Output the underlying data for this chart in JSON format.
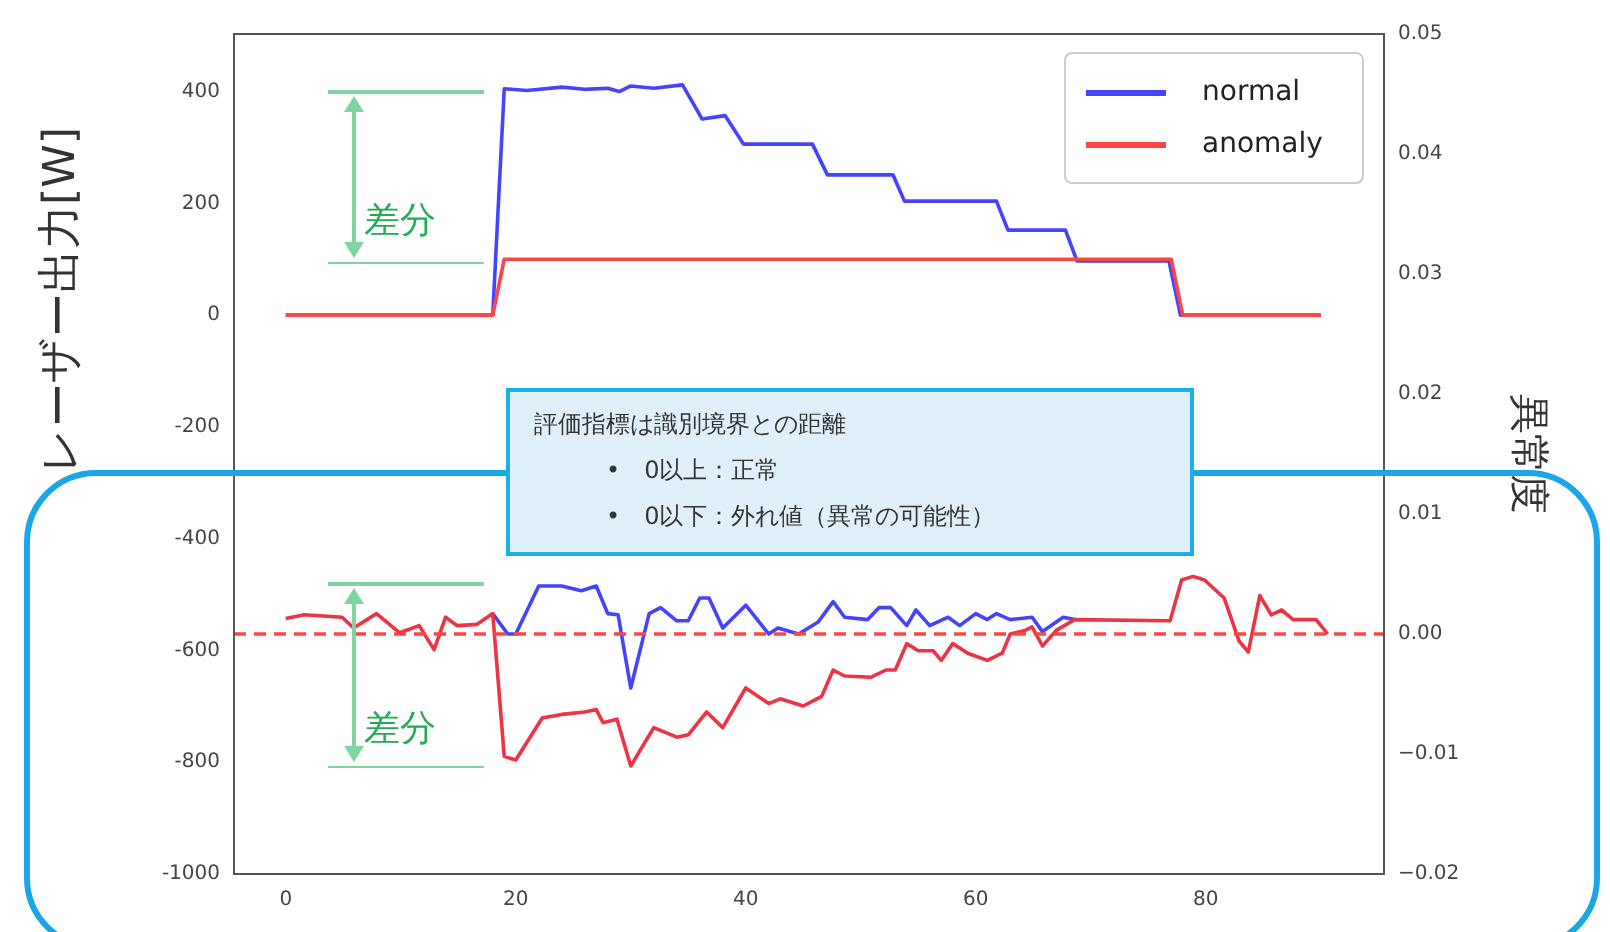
{
  "chart_data": {
    "type": "line",
    "ylabel": "レーザー出力[W]",
    "y2label": "異常度",
    "xlim": [
      -4.5,
      95.5
    ],
    "xticks": [
      0,
      20,
      40,
      60,
      80
    ],
    "ylim": [
      -1000,
      503
    ],
    "yticks": [
      -1000,
      -800,
      -600,
      -400,
      -200,
      0,
      200,
      400
    ],
    "y2lim": [
      -0.02,
      0.05
    ],
    "y2ticks": [
      {
        "value": -0.02,
        "label": "−0.02"
      },
      {
        "value": -0.01,
        "label": "−0.01"
      },
      {
        "value": 0,
        "label": "0.00"
      },
      {
        "value": 0.01,
        "label": "0.01"
      },
      {
        "value": 0.02,
        "label": "0.02"
      },
      {
        "value": 0.03,
        "label": "0.03"
      },
      {
        "value": 0.04,
        "label": "0.04"
      },
      {
        "value": 0.05,
        "label": "0.05"
      }
    ],
    "grid": false,
    "legend": "top right",
    "marker": "none",
    "line_style": "solid",
    "series": [
      {
        "name": "normal",
        "color": "#4444ff",
        "x": [
          0,
          18,
          19,
          21,
          24,
          26,
          28,
          29,
          30,
          32,
          34.5,
          36.2,
          38.2,
          39.8,
          45.8,
          47.1,
          52.8,
          53.8,
          61.8,
          62.8,
          67.8,
          68.8,
          76.8,
          77.8,
          90
        ],
        "values": [
          0,
          0,
          405,
          402,
          408,
          404,
          406,
          400,
          410,
          406,
          412,
          351,
          357,
          306,
          306,
          251,
          251,
          204,
          204,
          152,
          152,
          97,
          97,
          0,
          0
        ]
      },
      {
        "name": "anomaly",
        "color": "#ff4444",
        "x": [
          0,
          18,
          19,
          77,
          78,
          90
        ],
        "values": [
          0,
          0,
          100,
          100,
          0,
          0
        ]
      },
      {
        "color": "#4444ff",
        "axis": "y2",
        "x": [
          18,
          19.3,
          20,
          22,
          24,
          25.7,
          27,
          28,
          28.9,
          30,
          31.6,
          32.6,
          34,
          35,
          36,
          36.8,
          38,
          40,
          42,
          42.8,
          44.6,
          46.3,
          47.6,
          48.6,
          50.6,
          51.6,
          52.6,
          54,
          54.8,
          56,
          57.6,
          58.6,
          60,
          61,
          61.8,
          63,
          64.9,
          65.8,
          67.6,
          68.6
        ],
        "values": [
          0.0017,
          0,
          0,
          0.004,
          0.004,
          0.0036,
          0.004,
          0.0017,
          0.0016,
          -0.0045,
          0.0017,
          0.0022,
          0.0011,
          0.0011,
          0.003,
          0.003,
          0.0005,
          0.0024,
          0,
          0.0005,
          0,
          0.001,
          0.0027,
          0.0014,
          0.0012,
          0.0022,
          0.0022,
          0.0007,
          0.002,
          0.0007,
          0.0014,
          0.0007,
          0.0017,
          0.0012,
          0.0017,
          0.0012,
          0.0014,
          0.0002,
          0.0014,
          0.0012
        ]
      },
      {
        "color": "#ee3344",
        "axis": "y2",
        "x": [
          0,
          1.6,
          4.9,
          5.9,
          7.9,
          9.9,
          11.6,
          12.9,
          13.9,
          14.9,
          16.6,
          18,
          19,
          20,
          22.3,
          24,
          26,
          27,
          27.6,
          28.8,
          30,
          32,
          34,
          35,
          36.6,
          38,
          40,
          42,
          43,
          45,
          46.6,
          47.6,
          48.6,
          50.9,
          52.2,
          53,
          54,
          55,
          56.3,
          57,
          58,
          59.3,
          61,
          62.3,
          63,
          64.3,
          64.9,
          65.8,
          67,
          68.6,
          76.9,
          77.9,
          78.9,
          79.9,
          81.6,
          82.9,
          83.7,
          84.7,
          85.7,
          86.6,
          87.6,
          89.6,
          90.6
        ],
        "values": [
          0.0013,
          0.0016,
          0.0014,
          0.0005,
          0.0017,
          0.0001,
          0.0007,
          -0.0013,
          0.0014,
          0.0007,
          0.0008,
          0.0017,
          -0.0102,
          -0.0105,
          -0.007,
          -0.0067,
          -0.0065,
          -0.0063,
          -0.0074,
          -0.0071,
          -0.011,
          -0.0078,
          -0.0086,
          -0.0084,
          -0.0065,
          -0.0078,
          -0.0045,
          -0.0058,
          -0.0054,
          -0.006,
          -0.0052,
          -0.003,
          -0.0035,
          -0.0036,
          -0.003,
          -0.003,
          -0.0008,
          -0.0014,
          -0.0014,
          -0.0022,
          -0.0008,
          -0.0016,
          -0.0022,
          -0.0016,
          0,
          0.0003,
          0.0006,
          -0.001,
          0.0003,
          0.0012,
          0.0011,
          0.0045,
          0.0048,
          0.0045,
          0.003,
          -0.0006,
          -0.0015,
          0.0032,
          0.0016,
          0.002,
          0.0012,
          0.0012,
          0
        ]
      }
    ],
    "ref_lines": [
      {
        "axis": "y2",
        "value": 0,
        "color": "#ff4444",
        "line_style": "dashed"
      }
    ],
    "annotations": [
      "差分",
      "差分",
      "評価指標は識別境界との距離",
      "•　0以上：正常",
      "•　0以下：外れ値（異常の可能性）"
    ]
  }
}
